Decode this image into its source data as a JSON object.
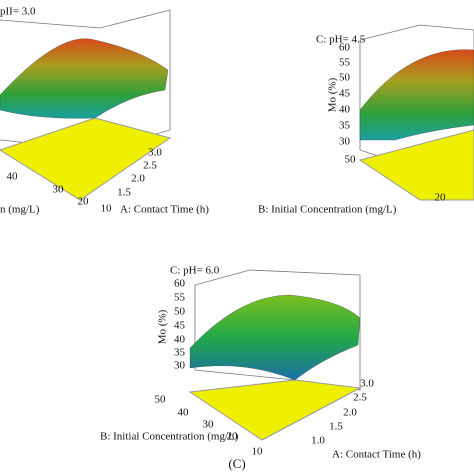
{
  "chart_data": [
    {
      "type": "surface3d",
      "title": "pII= 3.0",
      "xlabel": "A: Contact Time (h)",
      "ylabel": "n (mg/L)",
      "xticks": [
        1.5,
        2.0,
        2.5,
        3.0
      ],
      "yticks": [
        40,
        30,
        20,
        10
      ],
      "zticks": []
    },
    {
      "type": "surface3d",
      "title": "C: pH= 4.5",
      "zlabel": "Mo (%)",
      "ylabel": "B: Initial Concentration (mg/L)",
      "zticks": [
        60,
        55,
        50,
        45,
        40,
        35,
        30
      ],
      "yticks": [
        50,
        20
      ],
      "xticks": []
    },
    {
      "type": "surface3d",
      "title": "C: pH= 6.0",
      "zlabel": "Mo (%)",
      "ylabel": "B: Initial Concentration (mg/L)",
      "xlabel": "A: Contact Time (h)",
      "zticks": [
        60,
        55,
        50,
        45,
        40,
        35,
        30
      ],
      "yticks": [
        50,
        40,
        30,
        20,
        10
      ],
      "xticks": [
        1.0,
        1.5,
        2.0,
        2.5,
        3.0
      ]
    }
  ],
  "caption": "(C)"
}
